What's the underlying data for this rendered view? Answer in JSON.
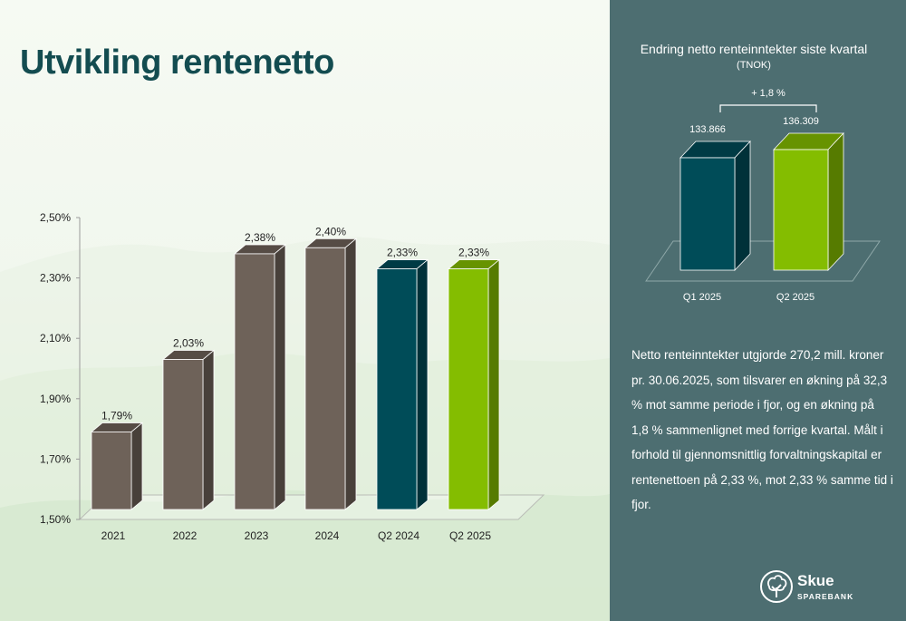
{
  "title": "Utvikling rentenetto",
  "chart_data": [
    {
      "type": "bar",
      "title": "Utvikling rentenetto",
      "categories": [
        "2021",
        "2022",
        "2023",
        "2024",
        "Q2 2024",
        "Q2 2025"
      ],
      "values": [
        1.79,
        2.03,
        2.38,
        2.4,
        2.33,
        2.33
      ],
      "data_labels": [
        "1,79%",
        "2,03%",
        "2,38%",
        "2,40%",
        "2,33%",
        "2,33%"
      ],
      "bar_colors": [
        "#6e6259",
        "#6e6259",
        "#6e6259",
        "#6e6259",
        "#004c58",
        "#84bd00"
      ],
      "ylim": [
        1.5,
        2.5
      ],
      "yticks": [
        1.5,
        1.7,
        1.9,
        2.1,
        2.3,
        2.5
      ],
      "ytick_labels": [
        "1,50%",
        "1,70%",
        "1,90%",
        "2,10%",
        "2,30%",
        "2,50%"
      ],
      "xlabel": "",
      "ylabel": "",
      "grid": false
    },
    {
      "type": "bar",
      "title": "Endring netto renteinntekter siste kvartal",
      "subtitle": "(TNOK)",
      "categories": [
        "Q1 2025",
        "Q2 2025"
      ],
      "values": [
        133866,
        136309
      ],
      "data_labels": [
        "133.866",
        "136.309"
      ],
      "bar_colors": [
        "#004c58",
        "#84bd00"
      ],
      "annotation": "+ 1,8 %",
      "grid": false
    }
  ],
  "summary": "Netto renteinntekter utgjorde 270,2 mill. kroner pr. 30.06.2025, som tilsvarer en økning på 32,3 % mot samme periode i fjor, og en økning på 1,8 % sammenlignet med forrige kvartal. Målt i forhold til gjennomsnittlig forvaltningskapital er rentenettoen på 2,33 %, mot 2,33 % samme tid i fjor.",
  "logo": {
    "name": "Skue",
    "sub": "SPAREBANK",
    "icon": "tree-logo-icon"
  },
  "colors": {
    "panel": "#4d6e71",
    "title": "#134c50",
    "gray": "#6e6259",
    "teal": "#004c58",
    "green": "#84bd00"
  }
}
